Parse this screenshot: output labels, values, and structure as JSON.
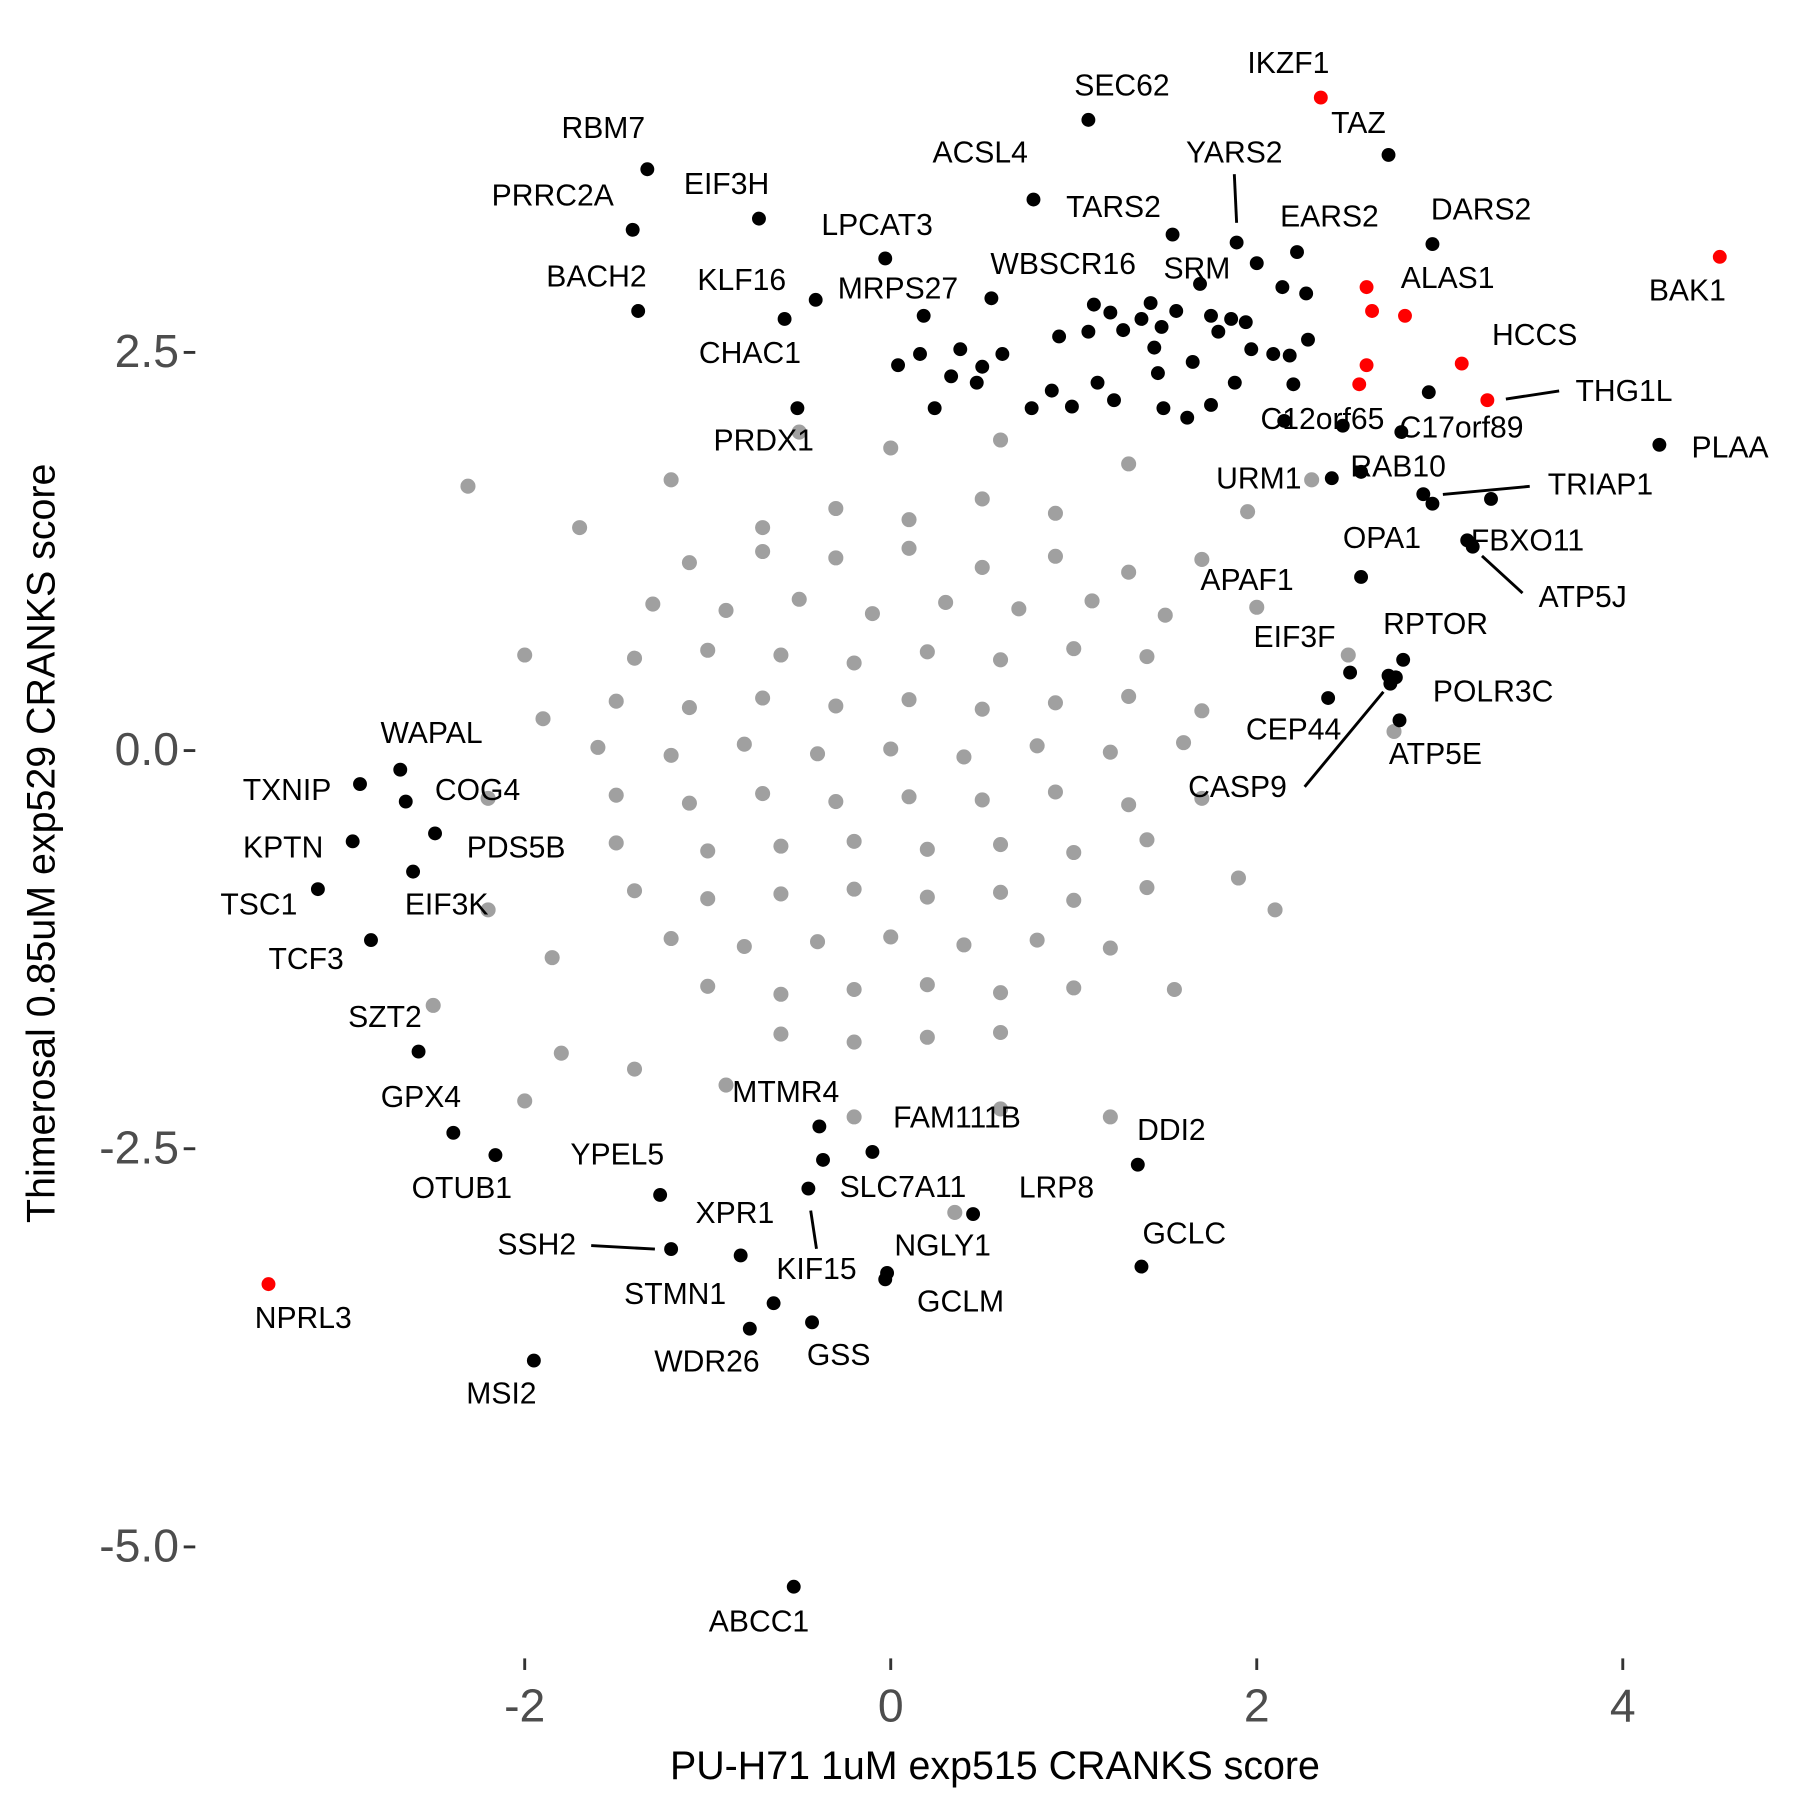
{
  "chart_data": {
    "type": "scatter",
    "x_label": "PU-H71 1uM exp515 CRANKS score",
    "y_label": "Thimerosal 0.85uM exp529 CRANKS score",
    "xlim": [
      -3.8,
      4.9
    ],
    "ylim": [
      -5.7,
      4.5
    ],
    "xticks": [
      -2,
      0,
      2,
      4
    ],
    "yticks": [
      {
        "value": -5,
        "label": "-5.0"
      },
      {
        "value": -2.5,
        "label": "-2.5"
      },
      {
        "value": 0,
        "label": "0.0"
      },
      {
        "value": 2.5,
        "label": "2.5"
      }
    ],
    "grid": false,
    "series": [
      {
        "color": "#a0a0a0",
        "x": [
          -0.3,
          0.1,
          0.5,
          0.9,
          -0.7,
          -1.1,
          -0.7,
          -0.3,
          0.1,
          0.5,
          0.9,
          1.3,
          -1.3,
          -0.9,
          -0.5,
          -0.1,
          0.3,
          0.7,
          1.1,
          1.5,
          -1.4,
          -1.0,
          -0.6,
          -0.2,
          0.2,
          0.6,
          1.0,
          1.4,
          -1.5,
          -1.1,
          -0.7,
          -0.3,
          0.1,
          0.5,
          0.9,
          1.3,
          1.7,
          -1.6,
          -1.2,
          -0.8,
          -0.4,
          0,
          0.4,
          0.8,
          1.2,
          1.6,
          -1.5,
          -1.1,
          -0.7,
          -0.3,
          0.1,
          0.5,
          0.9,
          1.3,
          1.7,
          -1.5,
          -1.0,
          -0.6,
          -0.2,
          0.2,
          0.6,
          1.0,
          1.4,
          -1.4,
          -1.0,
          -0.6,
          -0.2,
          0.2,
          0.6,
          1.0,
          1.4,
          -1.2,
          -0.8,
          -0.4,
          0,
          0.4,
          0.8,
          1.2,
          -1.0,
          -0.6,
          -0.2,
          0.2,
          0.6,
          1.0,
          -0.6,
          -0.2,
          0.2,
          0.6,
          -2.31,
          -1.7,
          -1.85,
          -2.2,
          -2.5,
          -2.0,
          -1.8,
          1.9,
          2.1,
          1.7,
          1.95,
          2.3,
          1.55,
          1.2,
          0.6,
          0.35,
          -0.9,
          -1.4,
          2.0,
          2.5,
          -2.0,
          -1.9,
          -2.2,
          -0.5,
          0,
          0.6,
          1.3,
          -1.2,
          2.75,
          -0.2
        ],
        "y": [
          1.52,
          1.45,
          1.58,
          1.49,
          1.4,
          1.18,
          1.25,
          1.21,
          1.27,
          1.15,
          1.22,
          1.12,
          0.92,
          0.88,
          0.95,
          0.86,
          0.93,
          0.89,
          0.94,
          0.85,
          0.58,
          0.63,
          0.6,
          0.55,
          0.62,
          0.57,
          0.64,
          0.59,
          0.31,
          0.27,
          0.33,
          0.28,
          0.32,
          0.26,
          0.3,
          0.34,
          0.25,
          0.02,
          -0.03,
          0.04,
          -0.02,
          0.01,
          -0.04,
          0.03,
          -0.01,
          0.05,
          -0.28,
          -0.33,
          -0.27,
          -0.32,
          -0.29,
          -0.31,
          -0.26,
          -0.34,
          -0.3,
          -0.58,
          -0.63,
          -0.6,
          -0.57,
          -0.62,
          -0.59,
          -0.64,
          -0.56,
          -0.88,
          -0.93,
          -0.9,
          -0.87,
          -0.92,
          -0.89,
          -0.94,
          -0.86,
          -1.18,
          -1.23,
          -1.2,
          -1.17,
          -1.22,
          -1.19,
          -1.24,
          -1.48,
          -1.53,
          -1.5,
          -1.47,
          -1.52,
          -1.49,
          -1.78,
          -1.83,
          -1.8,
          -1.77,
          1.66,
          1.4,
          -1.3,
          -1.0,
          -1.6,
          -2.2,
          -1.9,
          -0.8,
          -1.0,
          1.2,
          1.5,
          1.7,
          -1.5,
          -2.3,
          -2.25,
          -2.9,
          -2.1,
          -2.0,
          0.9,
          0.6,
          0.6,
          0.2,
          -0.3,
          2.0,
          1.9,
          1.95,
          1.8,
          1.7,
          0.12,
          -2.3
        ]
      },
      {
        "color": "#000000",
        "x": [
          1.08,
          2.72,
          -1.33,
          0.78,
          1.89,
          -0.72,
          -1.41,
          -0.03,
          1.54,
          2.22,
          2.96,
          -1.38,
          -0.58,
          -0.41,
          0.55,
          1.42,
          -0.51,
          0.04,
          2.15,
          2.79,
          4.2,
          2.41,
          2.57,
          2.96,
          2.57,
          3.15,
          3.18,
          2.51,
          2.39,
          2.8,
          2.76,
          2.78,
          2.72,
          2.73,
          -2.68,
          -2.9,
          -2.65,
          -2.94,
          -2.49,
          -2.61,
          -3.13,
          -2.84,
          -2.58,
          -2.39,
          -2.16,
          -1.26,
          -0.39,
          -0.1,
          1.35,
          -0.37,
          -0.45,
          0.45,
          -0.82,
          -1.2,
          -0.02,
          -0.03,
          1.37,
          -0.64,
          -0.77,
          -0.43,
          -1.95,
          -0.53,
          0.18,
          0.92,
          1.08,
          1.11,
          1.2,
          1.27,
          1.37,
          1.48,
          1.56,
          1.75,
          1.86,
          1.94,
          1.79,
          1.97,
          2.09,
          2.18,
          2.28,
          2.27,
          2.14,
          2.0,
          1.69,
          1.44,
          1.46,
          1.65,
          1.88,
          2.2,
          1.49,
          1.75,
          1.22,
          1.13,
          0.99,
          0.88,
          0.77,
          0.61,
          0.5,
          0.33,
          0.24,
          0.47,
          0.38,
          0.16,
          2.47,
          2.94,
          1.62,
          2.91,
          3.28
        ],
        "y": [
          3.96,
          3.74,
          3.65,
          3.46,
          3.19,
          3.34,
          3.27,
          3.09,
          3.24,
          3.13,
          3.18,
          2.76,
          2.71,
          2.83,
          2.84,
          2.81,
          2.15,
          2.42,
          2.07,
          2.0,
          1.92,
          1.71,
          1.75,
          1.55,
          1.09,
          1.32,
          1.28,
          0.49,
          0.33,
          0.57,
          0.46,
          0.19,
          0.47,
          0.42,
          -0.12,
          -0.21,
          -0.32,
          -0.57,
          -0.52,
          -0.76,
          -0.87,
          -1.19,
          -1.89,
          -2.4,
          -2.54,
          -2.79,
          -2.36,
          -2.52,
          -2.6,
          -2.57,
          -2.75,
          -2.91,
          -3.17,
          -3.13,
          -3.28,
          -3.32,
          -3.24,
          -3.47,
          -3.63,
          -3.59,
          -3.83,
          -5.25,
          2.73,
          2.6,
          2.63,
          2.8,
          2.75,
          2.64,
          2.71,
          2.66,
          2.76,
          2.73,
          2.71,
          2.69,
          2.63,
          2.52,
          2.49,
          2.48,
          2.58,
          2.87,
          2.91,
          3.06,
          2.93,
          2.53,
          2.37,
          2.44,
          2.31,
          2.3,
          2.15,
          2.17,
          2.2,
          2.31,
          2.16,
          2.26,
          2.15,
          2.49,
          2.41,
          2.35,
          2.15,
          2.31,
          2.52,
          2.49,
          2.04,
          2.25,
          2.09,
          1.61,
          1.58
        ],
        "labels": [
          "SEC62",
          "TAZ",
          "RBM7",
          "ACSL4",
          "YARS2",
          "EIF3H",
          "PRRC2A",
          "LPCAT3",
          "TARS2",
          "EARS2",
          "DARS2",
          "BACH2",
          "KLF16",
          "MRPS27",
          "WBSCR16",
          "SRM",
          "CHAC1",
          "PRDX1",
          "C12orf65",
          "C17orf89",
          "PLAA",
          "URM1",
          "RAB10",
          "TRIAP1",
          "OPA1",
          "FBXO11",
          "ATP5J",
          "APAF1",
          "EIF3F",
          "RPTOR",
          "POLR3C",
          "ATP5E",
          "CEP44",
          "CASP9",
          "WAPAL",
          "TXNIP",
          "COG4",
          "KPTN",
          "PDS5B",
          "EIF3K",
          "TSC1",
          "TCF3",
          "SZT2",
          "GPX4",
          "OTUB1",
          "YPEL5",
          "MTMR4",
          "FAM111B",
          "DDI2",
          "SLC7A11",
          "KIF15",
          "LRP8",
          "XPR1",
          "SSH2",
          "NGLY1",
          "GCLM",
          "GCLC",
          "STMN1",
          "WDR26",
          "GSS",
          "MSI2",
          "ABCC1",
          null,
          null,
          null,
          null,
          null,
          null,
          null,
          null,
          null,
          null,
          null,
          null,
          null,
          null,
          null,
          null,
          null,
          null,
          null,
          null,
          null,
          null,
          null,
          null,
          null,
          null,
          null,
          null,
          null,
          null,
          null,
          null,
          null,
          null,
          null,
          null,
          null,
          null,
          null
        ]
      },
      {
        "color": "#ff0000",
        "x": [
          2.35,
          4.53,
          2.6,
          3.12,
          3.26,
          -3.4,
          2.63,
          2.81,
          2.6,
          2.56
        ],
        "y": [
          4.1,
          3.1,
          2.91,
          2.43,
          2.2,
          -3.35,
          2.76,
          2.73,
          2.42,
          2.3
        ],
        "labels": [
          "IKZF1",
          "BAK1",
          "ALAS1",
          "HCCS",
          "THG1L",
          "NPRL3",
          null,
          null,
          null,
          null
        ]
      }
    ]
  }
}
